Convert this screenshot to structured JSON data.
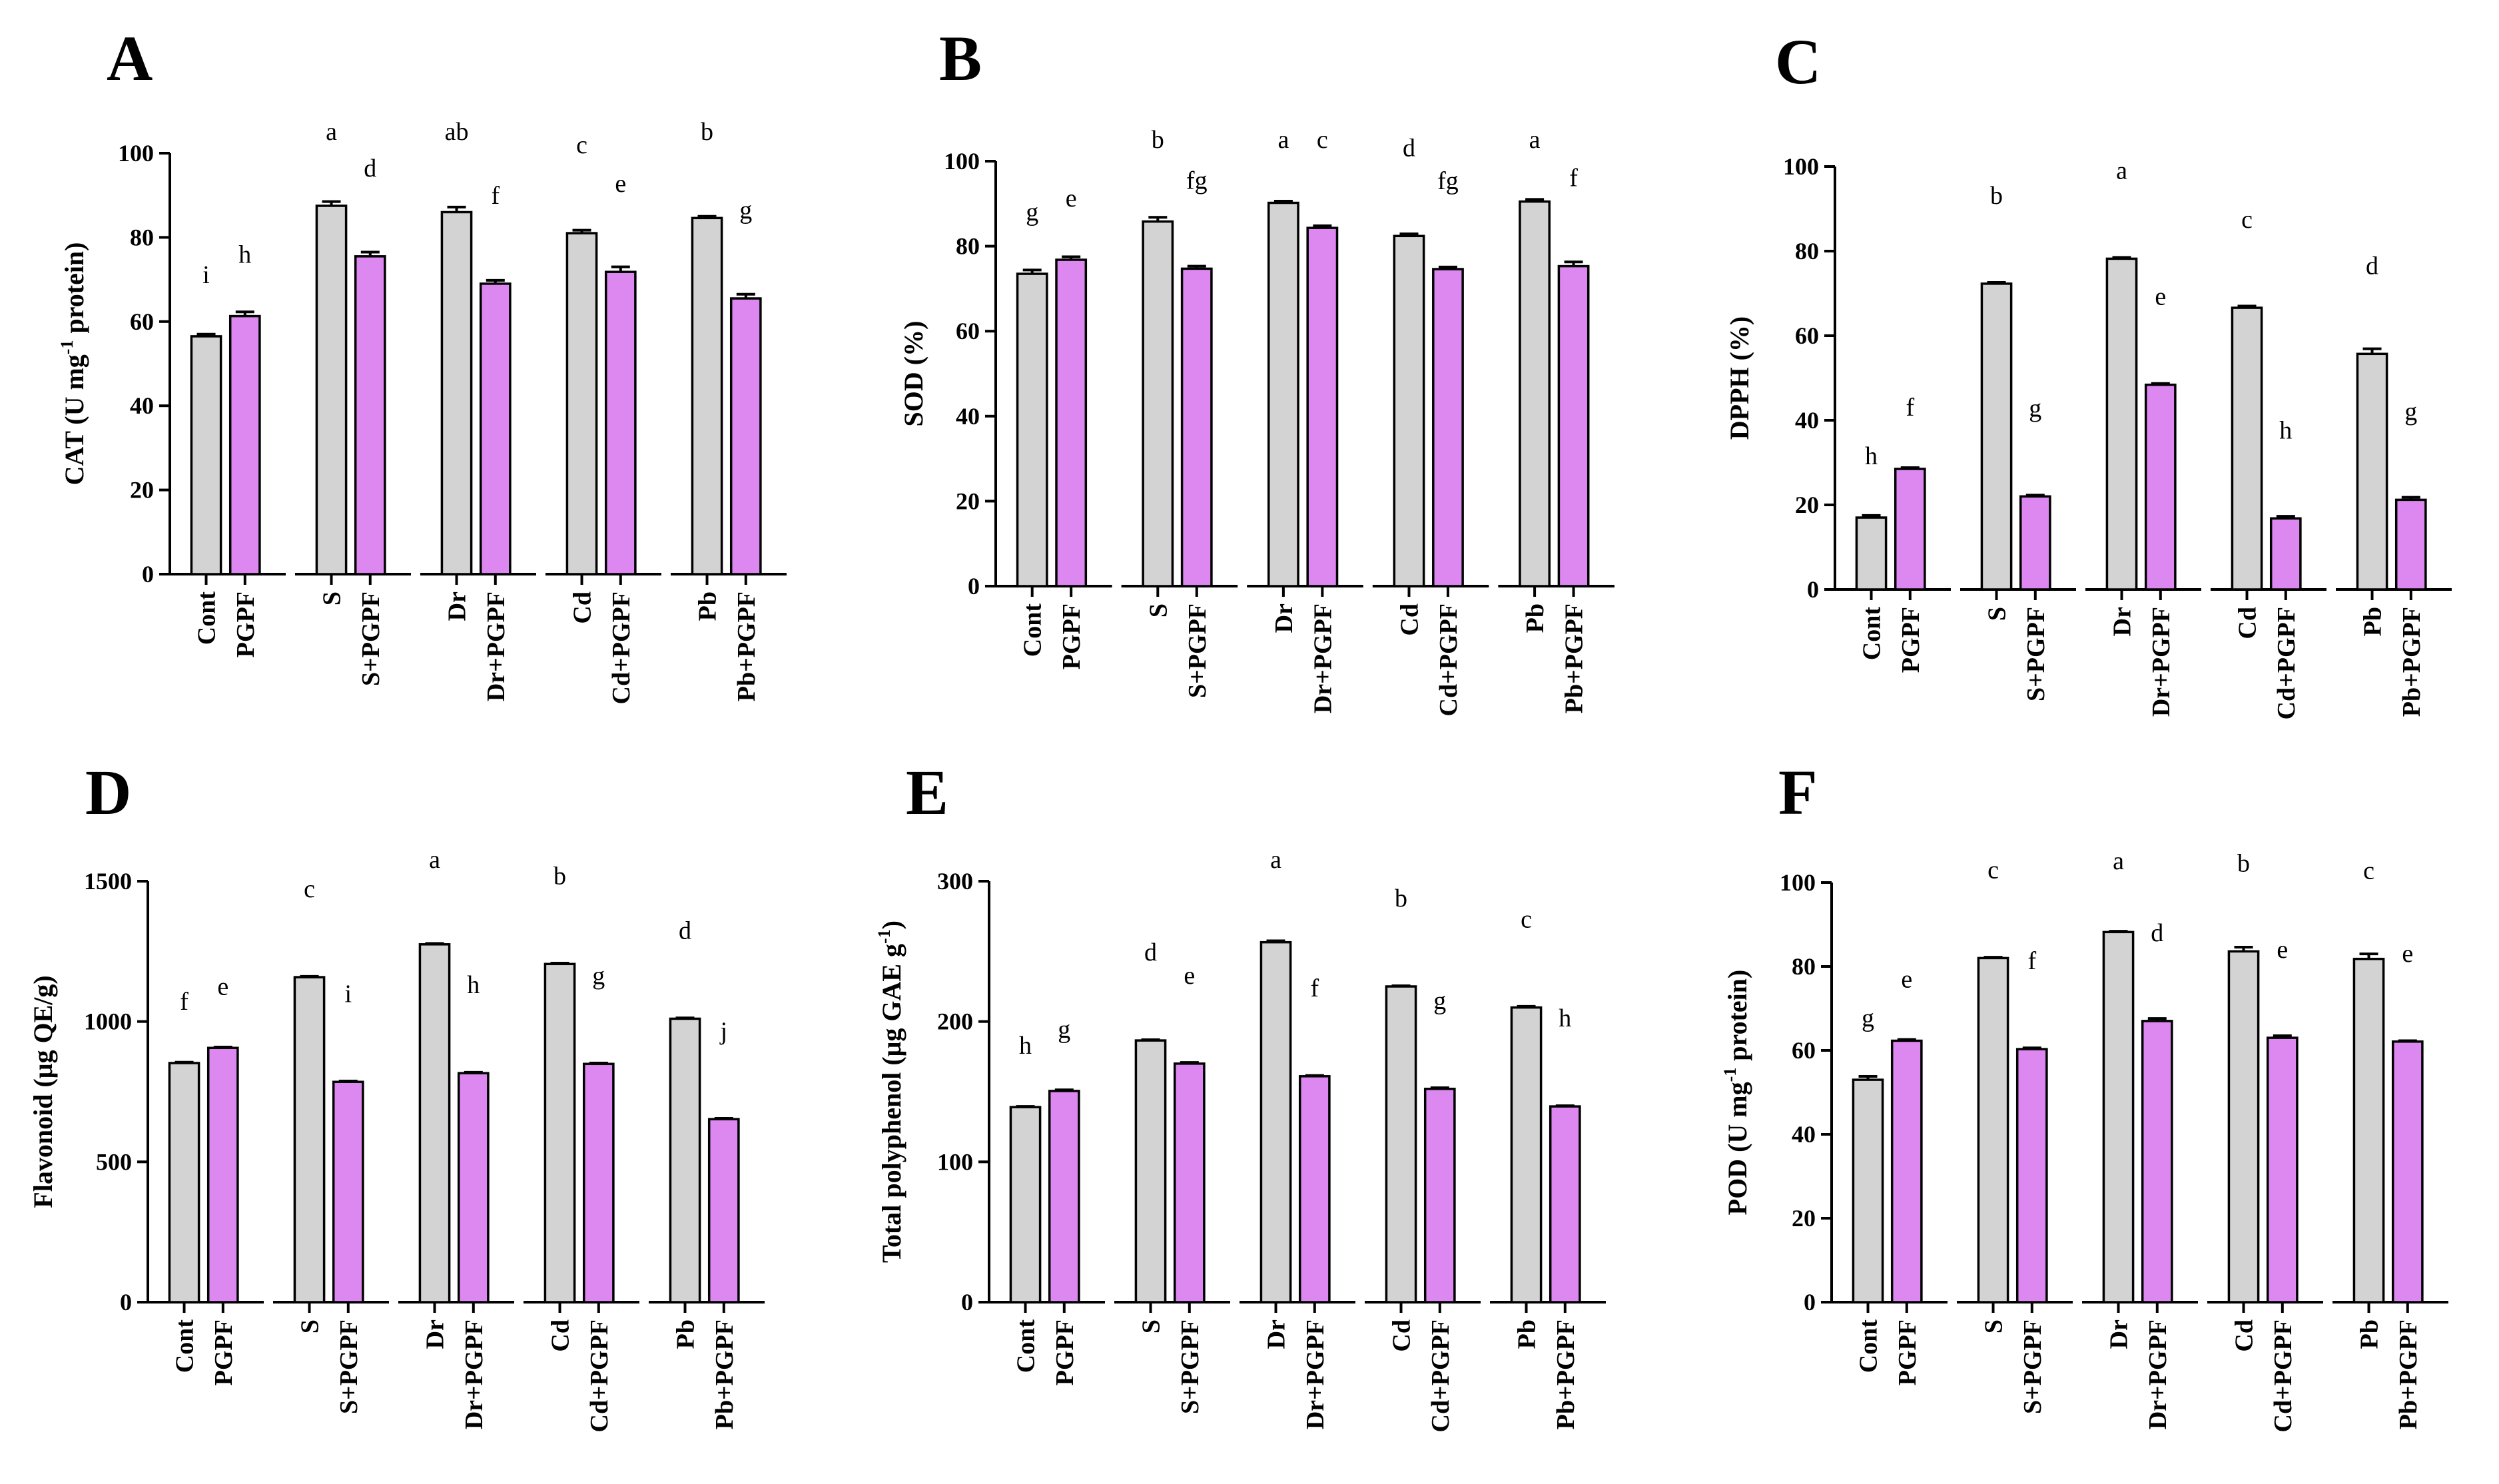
{
  "colors": {
    "control_bar": "#d3d3d3",
    "pgpf_bar": "#dd88f0",
    "axis": "#000000"
  },
  "chart_data": [
    {
      "panel": "A",
      "type": "bar",
      "ylabel_main": "CAT (U mg",
      "ylabel_sup": "-1",
      "ylabel_tail": " protein)",
      "ylim": [
        0,
        100
      ],
      "yticks": [
        0,
        20,
        40,
        60,
        80,
        100
      ],
      "categories": [
        "Cont",
        "PGPF",
        "S",
        "S+PGPF",
        "Dr",
        "Dr+PGPF",
        "Cd",
        "Cd+PGPF",
        "Pb",
        "Pb+PGPF"
      ],
      "values": [
        56.5,
        61.3,
        87.5,
        75.5,
        86,
        69,
        81,
        71.8,
        84.6,
        65.5
      ],
      "errors": [
        0.5,
        1,
        1,
        1,
        1.2,
        0.8,
        0.7,
        1.2,
        0.4,
        1
      ],
      "letters": [
        "i",
        "h",
        "a",
        "d",
        "ab",
        "f",
        "c",
        "e",
        "b",
        "g"
      ]
    },
    {
      "panel": "B",
      "type": "bar",
      "ylabel_main": "SOD (%)",
      "ylabel_sup": "",
      "ylabel_tail": "",
      "ylim": [
        0,
        100
      ],
      "yticks": [
        0,
        20,
        40,
        60,
        80,
        100
      ],
      "categories": [
        "Cont",
        "PGPF",
        "S",
        "S+PGPF",
        "Dr",
        "Dr+PGPF",
        "Cd",
        "Cd+PGPF",
        "Pb",
        "Pb+PGPF"
      ],
      "values": [
        73.5,
        76.8,
        85.8,
        74.7,
        90.2,
        84.3,
        82.4,
        74.6,
        90.5,
        75.3
      ],
      "errors": [
        0.9,
        0.7,
        1,
        0.6,
        0.4,
        0.5,
        0.5,
        0.5,
        0.5,
        1
      ],
      "letters": [
        "g",
        "e",
        "b",
        "fg",
        "a",
        "c",
        "d",
        "fg",
        "a",
        "f"
      ]
    },
    {
      "panel": "C",
      "type": "bar",
      "ylabel_main": "DPPH (%)",
      "ylabel_sup": "",
      "ylabel_tail": "",
      "ylim": [
        0,
        100
      ],
      "yticks": [
        0,
        20,
        40,
        60,
        80,
        100
      ],
      "categories": [
        "Cont",
        "PGPF",
        "S",
        "S+PGPF",
        "Dr",
        "Dr+PGPF",
        "Cd",
        "Cd+PGPF",
        "Pb",
        "Pb+PGPF"
      ],
      "values": [
        17,
        28.5,
        72.3,
        22,
        78.2,
        48.4,
        66.6,
        16.8,
        55.7,
        21.2
      ],
      "errors": [
        0.5,
        0.3,
        0.3,
        0.3,
        0.3,
        0.3,
        0.4,
        0.5,
        1.2,
        0.6
      ],
      "letters": [
        "h",
        "f",
        "b",
        "g",
        "a",
        "e",
        "c",
        "h",
        "d",
        "g"
      ]
    },
    {
      "panel": "D",
      "type": "bar",
      "ylabel_main": "Flavonoid (μg QE/g)",
      "ylabel_sup": "",
      "ylabel_tail": "",
      "ylim": [
        0,
        1500
      ],
      "yticks": [
        0,
        500,
        1000,
        1500
      ],
      "categories": [
        "Cont",
        "PGPF",
        "S",
        "S+PGPF",
        "Dr",
        "Dr+PGPF",
        "Cd",
        "Cd+PGPF",
        "Pb",
        "Pb+PGPF"
      ],
      "values": [
        852,
        906,
        1158,
        785,
        1275,
        816,
        1205,
        849,
        1010,
        652
      ],
      "errors": [
        3,
        3,
        3,
        3,
        3,
        3,
        3,
        3,
        3,
        3
      ],
      "letters": [
        "f",
        "e",
        "c",
        "i",
        "a",
        "h",
        "b",
        "g",
        "d",
        "j"
      ]
    },
    {
      "panel": "E",
      "type": "bar",
      "ylabel_main": "Total polyphenol (μg GAE g",
      "ylabel_sup": "-1",
      "ylabel_tail": ")",
      "ylim": [
        0,
        300
      ],
      "yticks": [
        0,
        100,
        200,
        300
      ],
      "categories": [
        "Cont",
        "PGPF",
        "S",
        "S+PGPF",
        "Dr",
        "Dr+PGPF",
        "Cd",
        "Cd+PGPF",
        "Pb",
        "Pb+PGPF"
      ],
      "values": [
        139,
        150.5,
        186.5,
        170,
        256.5,
        161,
        225,
        152,
        210,
        139.5
      ],
      "errors": [
        0.5,
        0.8,
        0.5,
        0.8,
        1,
        0.5,
        0.5,
        0.8,
        0.8,
        0.5
      ],
      "letters": [
        "h",
        "g",
        "d",
        "e",
        "a",
        "f",
        "b",
        "g",
        "c",
        "h"
      ]
    },
    {
      "panel": "F",
      "type": "bar",
      "ylabel_main": "POD (U mg",
      "ylabel_sup": "-1",
      "ylabel_tail": " protein)",
      "ylim": [
        0,
        100
      ],
      "yticks": [
        0,
        20,
        40,
        60,
        80,
        100
      ],
      "categories": [
        "Cont",
        "PGPF",
        "S",
        "S+PGPF",
        "Dr",
        "Dr+PGPF",
        "Cd",
        "Cd+PGPF",
        "Pb",
        "Pb+PGPF"
      ],
      "values": [
        53,
        62.3,
        82,
        60.3,
        88.2,
        67,
        83.6,
        63,
        81.8,
        62.1
      ],
      "errors": [
        0.8,
        0.3,
        0.2,
        0.3,
        0.2,
        0.6,
        1,
        0.5,
        1.2,
        0.2
      ],
      "letters": [
        "g",
        "e",
        "c",
        "f",
        "a",
        "d",
        "b",
        "e",
        "c",
        "e"
      ]
    }
  ]
}
